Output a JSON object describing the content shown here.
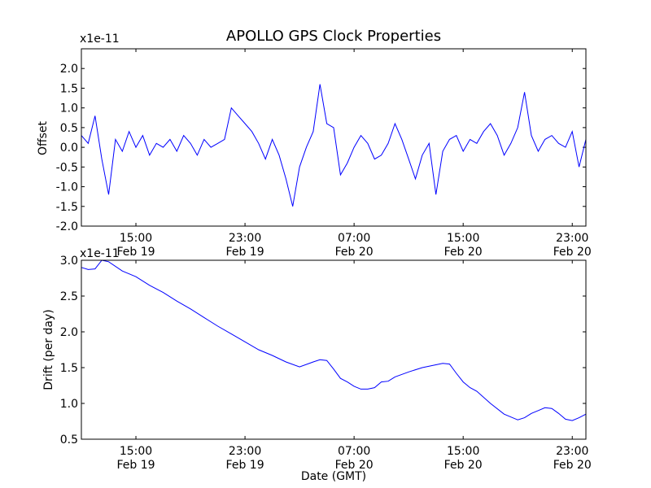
{
  "figure": {
    "title": "APOLLO GPS Clock Properties",
    "xlabel": "Date (GMT)"
  },
  "chart_data": [
    {
      "type": "line",
      "title": "APOLLO GPS Clock Properties",
      "ylabel": "Offset",
      "yscale_label": "x1e-11",
      "ylim": [
        -2.0,
        2.5
      ],
      "yticks": [
        -2.0,
        -1.5,
        -1.0,
        -0.5,
        0.0,
        0.5,
        1.0,
        1.5,
        2.0
      ],
      "ytick_labels": [
        "-2.0",
        "-1.5",
        "-1.0",
        "-0.5",
        "0.0",
        "0.5",
        "1.0",
        "1.5",
        "2.0"
      ],
      "xlim": [
        "2012-02-19 11:00",
        "2012-02-21 00:00"
      ],
      "xticks": [
        {
          "time": "Feb 19 15:00",
          "label1": "15:00",
          "label2": "Feb 19"
        },
        {
          "time": "Feb 19 23:00",
          "label1": "23:00",
          "label2": "Feb 19"
        },
        {
          "time": "Feb 20 07:00",
          "label1": "07:00",
          "label2": "Feb 20"
        },
        {
          "time": "Feb 20 15:00",
          "label1": "15:00",
          "label2": "Feb 20"
        },
        {
          "time": "Feb 20 23:00",
          "label1": "23:00",
          "label2": "Feb 20"
        }
      ],
      "color": "#0000ff",
      "grid": false,
      "series": [
        {
          "x_hours_from_feb19_11": [
            0,
            0.5,
            1,
            1.5,
            2,
            2.5,
            3,
            3.5,
            4,
            4.5,
            5,
            5.5,
            6,
            6.5,
            7,
            7.5,
            8,
            8.5,
            9,
            9.5,
            10,
            10.5,
            11,
            11.5,
            12,
            12.5,
            13,
            13.5,
            14,
            14.5,
            15,
            15.5,
            16,
            16.5,
            17,
            17.5,
            18,
            18.5,
            19,
            19.5,
            20,
            20.5,
            21,
            21.5,
            22,
            22.5,
            23,
            23.5,
            24,
            24.5,
            25,
            25.5,
            26,
            26.5,
            27,
            27.5,
            28,
            28.5,
            29,
            29.5,
            30,
            30.5,
            31,
            31.5,
            32,
            32.5,
            33,
            33.5,
            34,
            34.5,
            35,
            35.5,
            36,
            36.5,
            37
          ],
          "values": [
            0.3,
            0.1,
            0.8,
            -0.3,
            -1.2,
            0.2,
            -0.1,
            0.4,
            0.0,
            0.3,
            -0.2,
            0.1,
            0.0,
            0.2,
            -0.1,
            0.3,
            0.1,
            -0.2,
            0.2,
            0.0,
            0.1,
            0.2,
            1.0,
            0.8,
            0.6,
            0.4,
            0.1,
            -0.3,
            0.2,
            -0.2,
            -0.8,
            -1.5,
            -0.5,
            0.0,
            0.4,
            1.6,
            0.6,
            0.5,
            -0.7,
            -0.4,
            0.0,
            0.3,
            0.1,
            -0.3,
            -0.2,
            0.1,
            0.6,
            0.2,
            -0.3,
            -0.8,
            -0.2,
            0.1,
            -1.2,
            -0.1,
            0.2,
            0.3,
            -0.1,
            0.2,
            0.1,
            0.4,
            0.6,
            0.3,
            -0.2,
            0.1,
            0.5,
            1.4,
            0.3,
            -0.1,
            0.2,
            0.3,
            0.1,
            0.0,
            0.4,
            -0.5,
            0.2
          ]
        }
      ]
    },
    {
      "type": "line",
      "ylabel": "Drift (per day)",
      "yscale_label": "x1e-11",
      "ylim": [
        0.5,
        3.0
      ],
      "yticks": [
        0.5,
        1.0,
        1.5,
        2.0,
        2.5,
        3.0
      ],
      "ytick_labels": [
        "0.5",
        "1.0",
        "1.5",
        "2.0",
        "2.5",
        "3.0"
      ],
      "xlabel": "Date (GMT)",
      "xlim": [
        "2012-02-19 11:00",
        "2012-02-21 00:00"
      ],
      "xticks": [
        {
          "time": "Feb 19 15:00",
          "label1": "15:00",
          "label2": "Feb 19"
        },
        {
          "time": "Feb 19 23:00",
          "label1": "23:00",
          "label2": "Feb 19"
        },
        {
          "time": "Feb 20 07:00",
          "label1": "07:00",
          "label2": "Feb 20"
        },
        {
          "time": "Feb 20 15:00",
          "label1": "15:00",
          "label2": "Feb 20"
        },
        {
          "time": "Feb 20 23:00",
          "label1": "23:00",
          "label2": "Feb 20"
        }
      ],
      "color": "#0000ff",
      "grid": false,
      "series": [
        {
          "x_hours_from_feb19_11": [
            0,
            0.5,
            1,
            1.5,
            2,
            3,
            4,
            5,
            6,
            7,
            8,
            9,
            10,
            11,
            12,
            13,
            14,
            15,
            16,
            17,
            17.5,
            18,
            18.5,
            19,
            19.5,
            20,
            20.5,
            21,
            21.5,
            22,
            22.5,
            23,
            24,
            25,
            26,
            26.5,
            27,
            27.5,
            28,
            28.5,
            29,
            30,
            31,
            32,
            32.5,
            33,
            33.5,
            34,
            34.5,
            35,
            35.5,
            36,
            36.5,
            37
          ],
          "values": [
            2.9,
            2.87,
            2.88,
            3.0,
            2.98,
            2.85,
            2.77,
            2.65,
            2.55,
            2.43,
            2.32,
            2.2,
            2.08,
            1.97,
            1.86,
            1.75,
            1.67,
            1.58,
            1.51,
            1.58,
            1.61,
            1.6,
            1.48,
            1.35,
            1.3,
            1.24,
            1.2,
            1.2,
            1.22,
            1.3,
            1.31,
            1.37,
            1.44,
            1.5,
            1.54,
            1.56,
            1.55,
            1.42,
            1.3,
            1.22,
            1.17,
            1.0,
            0.85,
            0.77,
            0.8,
            0.86,
            0.9,
            0.94,
            0.93,
            0.86,
            0.78,
            0.76,
            0.8,
            0.85
          ]
        }
      ]
    }
  ]
}
